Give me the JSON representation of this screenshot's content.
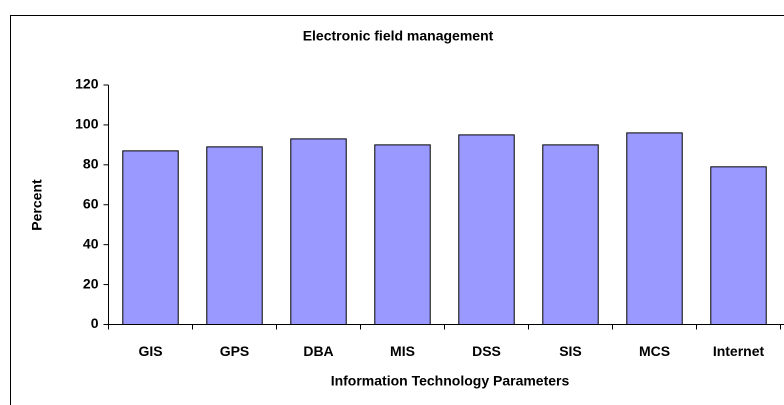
{
  "chart_data": {
    "type": "bar",
    "title": "Electronic field management",
    "x_label": "Information Technology Parameters",
    "y_label": "Percent",
    "categories": [
      "GIS",
      "GPS",
      "DBA",
      "MIS",
      "DSS",
      "SIS",
      "MCS",
      "Internet"
    ],
    "values": [
      87,
      89,
      93,
      90,
      95,
      90,
      96,
      79
    ],
    "color": "#9999ff",
    "ylim": [
      0,
      120
    ],
    "yticks": [
      0,
      20,
      40,
      60,
      80,
      100,
      120
    ],
    "grid": false
  }
}
